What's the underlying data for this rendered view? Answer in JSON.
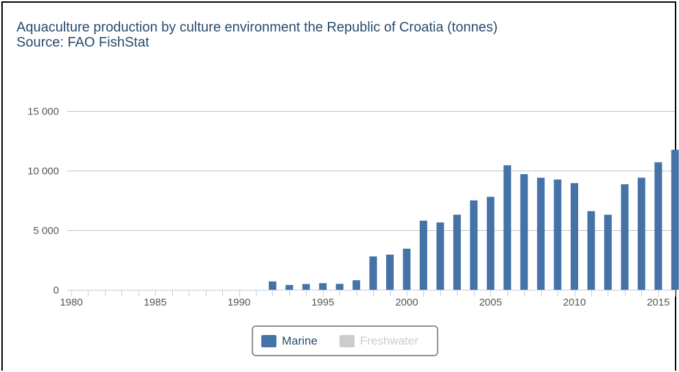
{
  "title": "Aquaculture production by culture environment the Republic of Croatia (tonnes)",
  "subtitle": "Source: FAO FishStat",
  "colors": {
    "marine": "#4572a7",
    "freshwater_hidden": "#cccccc",
    "axis": "#c0d0e0",
    "grid": "#c0c0c0",
    "title": "#274b6d"
  },
  "legend": {
    "items": [
      {
        "label": "Marine",
        "active": true
      },
      {
        "label": "Freshwater",
        "active": false
      }
    ]
  },
  "chart_data": {
    "type": "bar",
    "title": "Aquaculture production by culture environment the Republic of Croatia (tonnes)",
    "subtitle": "Source: FAO FishStat",
    "xlabel": "",
    "ylabel": "",
    "ylim": [
      0,
      15000
    ],
    "yticks": [
      0,
      5000,
      10000,
      15000
    ],
    "ytick_labels": [
      "0",
      "5 000",
      "10 000",
      "15 000"
    ],
    "xlim": [
      1980,
      2016
    ],
    "xticks": [
      1980,
      1985,
      1990,
      1995,
      2000,
      2005,
      2010,
      2015
    ],
    "grid": "horizontal",
    "legend_position": "bottom-center",
    "series": [
      {
        "name": "Marine",
        "visible": true,
        "x": [
          1992,
          1993,
          1994,
          1995,
          1996,
          1997,
          1998,
          1999,
          2000,
          2001,
          2002,
          2003,
          2004,
          2005,
          2006,
          2007,
          2008,
          2009,
          2010,
          2011,
          2012,
          2013,
          2014,
          2015,
          2016
        ],
        "values": [
          700,
          400,
          480,
          560,
          500,
          800,
          2800,
          2950,
          3450,
          5800,
          5650,
          6300,
          7500,
          7800,
          10450,
          9700,
          9400,
          9250,
          8950,
          6600,
          6300,
          8850,
          9400,
          10700,
          11750
        ]
      },
      {
        "name": "Freshwater",
        "visible": false,
        "x": [],
        "values": []
      }
    ]
  }
}
